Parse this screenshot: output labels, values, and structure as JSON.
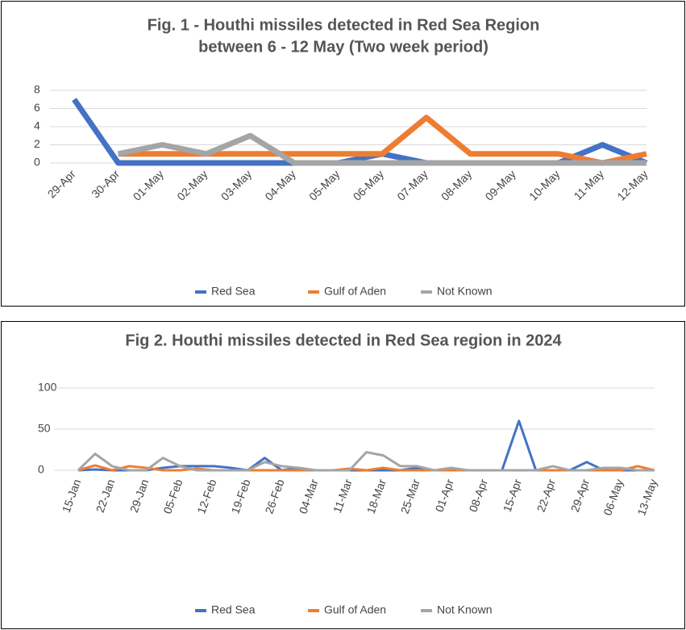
{
  "chart_data": [
    {
      "type": "line",
      "title": "Fig. 1 - Houthi missiles detected in Red Sea Region",
      "subtitle": "between 6 - 12 May (Two week period)",
      "categories": [
        "29-Apr",
        "30-Apr",
        "01-May",
        "02-May",
        "03-May",
        "04-May",
        "05-May",
        "06-May",
        "07-May",
        "08-May",
        "09-May",
        "10-May",
        "11-May",
        "12-May"
      ],
      "ylim": [
        0,
        8
      ],
      "yticks": [
        0,
        2,
        4,
        6,
        8
      ],
      "grid": true,
      "legend": "bottom",
      "series": [
        {
          "name": "Red Sea",
          "color": "#4472c4",
          "values": [
            7,
            0,
            0,
            0,
            0,
            0,
            0,
            1,
            0,
            0,
            0,
            0,
            2,
            0
          ]
        },
        {
          "name": "Gulf of Aden",
          "color": "#ed7d31",
          "values": [
            null,
            1,
            1,
            1,
            1,
            1,
            1,
            1,
            5,
            1,
            1,
            1,
            0,
            1
          ]
        },
        {
          "name": "Not Known",
          "color": "#a5a5a5",
          "values": [
            null,
            1,
            2,
            1,
            3,
            0,
            0,
            0,
            0,
            0,
            0,
            0,
            0,
            0
          ]
        }
      ]
    },
    {
      "type": "line",
      "title": "Fig 2. Houthi missiles detected in Red Sea region in 2024",
      "categories": [
        "15-Jan",
        null,
        "22-Jan",
        null,
        "29-Jan",
        null,
        "05-Feb",
        null,
        "12-Feb",
        null,
        "19-Feb",
        null,
        "26-Feb",
        null,
        "04-Mar",
        null,
        "11-Mar",
        null,
        "18-Mar",
        null,
        "25-Mar",
        null,
        "01-Apr",
        null,
        "08-Apr",
        null,
        "15-Apr",
        null,
        "22-Apr",
        null,
        "29-Apr",
        null,
        "06-May",
        null,
        "13-May"
      ],
      "ylim": [
        0,
        100
      ],
      "yticks": [
        0,
        50,
        100
      ],
      "grid": true,
      "legend": "bottom",
      "series": [
        {
          "name": "Red Sea",
          "color": "#4472c4",
          "values": [
            0,
            1,
            0,
            0,
            0,
            3,
            5,
            5,
            5,
            3,
            0,
            15,
            0,
            3,
            0,
            0,
            0,
            0,
            0,
            0,
            3,
            0,
            0,
            0,
            0,
            0,
            60,
            0,
            0,
            0,
            10,
            0,
            0,
            0,
            0
          ]
        },
        {
          "name": "Gulf of Aden",
          "color": "#ed7d31",
          "values": [
            0,
            6,
            0,
            5,
            3,
            0,
            0,
            2,
            0,
            0,
            0,
            0,
            0,
            0,
            0,
            0,
            2,
            0,
            3,
            0,
            0,
            0,
            0,
            0,
            0,
            0,
            0,
            0,
            0,
            0,
            0,
            0,
            0,
            5,
            0
          ]
        },
        {
          "name": "Not Known",
          "color": "#a5a5a5",
          "values": [
            0,
            20,
            5,
            0,
            0,
            15,
            5,
            0,
            0,
            0,
            0,
            10,
            5,
            3,
            0,
            0,
            0,
            22,
            18,
            5,
            5,
            0,
            3,
            0,
            0,
            0,
            0,
            0,
            5,
            0,
            0,
            3,
            3,
            0,
            0
          ]
        }
      ]
    }
  ]
}
